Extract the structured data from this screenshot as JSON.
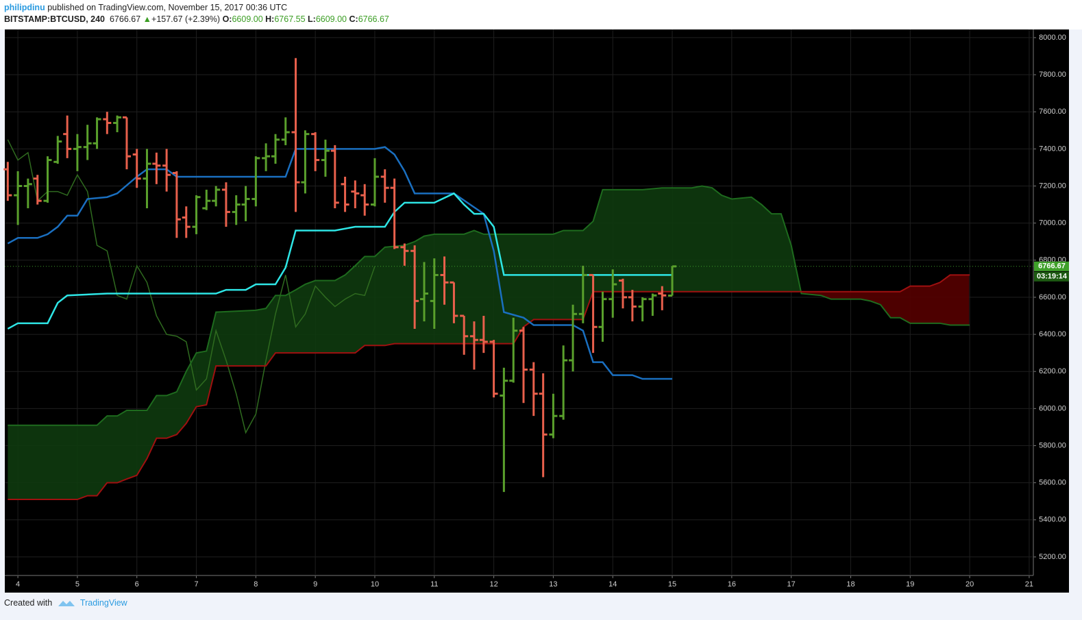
{
  "header": {
    "author": "philipdinu",
    "published": "published on TradingView.com, November 15, 2017 00:36 UTC",
    "symbol": "BITSTAMP:BTCUSD, 240",
    "price": "6766.67",
    "arrow": "▲",
    "change": "+157.67 (+2.39%)",
    "ohlc": [
      {
        "key": "O:",
        "value": "6609.00"
      },
      {
        "key": "H:",
        "value": "6767.55"
      },
      {
        "key": "L:",
        "value": "6609.00"
      },
      {
        "key": "C:",
        "value": "6766.67"
      }
    ]
  },
  "footer": {
    "created": "Created with",
    "brand": "TradingView"
  },
  "chart_data": {
    "type": "ohlc",
    "x": [
      3.83,
      4,
      4.17,
      4.33,
      4.5,
      4.67,
      4.83,
      5,
      5.17,
      5.33,
      5.5,
      5.67,
      5.83,
      6,
      6.17,
      6.33,
      6.5,
      6.67,
      6.83,
      7,
      7.17,
      7.33,
      7.5,
      7.67,
      7.83,
      8,
      8.17,
      8.33,
      8.5,
      8.67,
      8.83,
      9,
      9.17,
      9.33,
      9.5,
      9.67,
      9.83,
      10,
      10.17,
      10.33,
      10.5,
      10.67,
      10.83,
      11,
      11.17,
      11.33,
      11.5,
      11.67,
      11.83,
      12,
      12.17,
      12.33,
      12.5,
      12.67,
      12.83,
      13,
      13.17,
      13.33,
      13.5,
      13.67,
      13.83,
      14,
      14.17,
      14.33,
      14.5,
      14.67,
      14.83,
      15
    ],
    "open": [
      7290,
      7150,
      7200,
      7240,
      7120,
      7330,
      7480,
      7400,
      7410,
      7430,
      7560,
      7540,
      7570,
      7370,
      7240,
      7320,
      7310,
      7270,
      7030,
      6980,
      7080,
      7120,
      7180,
      7060,
      7100,
      7130,
      7350,
      7360,
      7450,
      7490,
      7220,
      7480,
      7340,
      7390,
      7210,
      7170,
      7150,
      7100,
      7250,
      7190,
      6870,
      6850,
      6590,
      6580,
      6720,
      6680,
      6500,
      6390,
      6370,
      6360,
      6070,
      6150,
      6420,
      6210,
      6080,
      5860,
      5960,
      6260,
      6510,
      6720,
      6440,
      6590,
      6690,
      6600,
      6550,
      6590,
      6620,
      6609
    ],
    "high": [
      7330,
      7280,
      7240,
      7260,
      7360,
      7470,
      7580,
      7480,
      7530,
      7570,
      7600,
      7580,
      7570,
      7400,
      7400,
      7380,
      7400,
      7280,
      7090,
      7150,
      7180,
      7200,
      7220,
      7150,
      7200,
      7360,
      7430,
      7480,
      7570,
      7890,
      7500,
      7490,
      7450,
      7420,
      7250,
      7230,
      7210,
      7350,
      7290,
      7240,
      6890,
      6880,
      6790,
      6810,
      6820,
      6680,
      6500,
      6470,
      6500,
      6370,
      6220,
      6490,
      6440,
      6250,
      6190,
      6080,
      6340,
      6560,
      6770,
      6720,
      6630,
      6750,
      6700,
      6640,
      6600,
      6620,
      6660,
      6767.55
    ],
    "low": [
      7120,
      6990,
      7080,
      7100,
      7110,
      7320,
      7350,
      7280,
      7340,
      7400,
      7480,
      7490,
      7290,
      7190,
      7080,
      7210,
      7170,
      6920,
      6920,
      6940,
      7070,
      7090,
      6980,
      6990,
      7010,
      7090,
      7280,
      7320,
      7420,
      7060,
      7160,
      7280,
      7250,
      7080,
      7060,
      7080,
      7040,
      7090,
      7110,
      6860,
      6770,
      6430,
      6470,
      6430,
      6560,
      6460,
      6290,
      6210,
      6300,
      6060,
      5550,
      6140,
      6030,
      5960,
      5630,
      5840,
      5940,
      6200,
      6460,
      6300,
      6360,
      6490,
      6540,
      6470,
      6470,
      6500,
      6530,
      6609
    ],
    "close": [
      7150,
      7200,
      7210,
      7120,
      7340,
      7440,
      7400,
      7410,
      7430,
      7560,
      7540,
      7570,
      7360,
      7240,
      7320,
      7310,
      7260,
      7020,
      6980,
      7140,
      7120,
      7180,
      7060,
      7100,
      7130,
      7350,
      7360,
      7450,
      7490,
      7220,
      7480,
      7340,
      7390,
      7110,
      7100,
      7160,
      7100,
      7250,
      7190,
      6870,
      6850,
      6580,
      6620,
      6720,
      6680,
      6500,
      6390,
      6370,
      6360,
      6080,
      6150,
      6420,
      6210,
      6080,
      5860,
      5960,
      6260,
      6510,
      6720,
      6440,
      6590,
      6670,
      6600,
      6550,
      6590,
      6610,
      6610,
      6766.67
    ],
    "up_color": "#5aa02c",
    "down_color": "#e8604c",
    "lines": [
      {
        "color": "#2f6b1f",
        "width": 1.5,
        "x": [
          3.83,
          4,
          4.17,
          4.33,
          4.5,
          4.67,
          4.83,
          5,
          5.17,
          5.33,
          5.5,
          5.67,
          5.83,
          6,
          6.17,
          6.33,
          6.5,
          6.67,
          6.83,
          7,
          7.17,
          7.33,
          7.5,
          7.67,
          7.83,
          8,
          8.17,
          8.33,
          8.5,
          8.67,
          8.83,
          9,
          9.17,
          9.33,
          9.5,
          9.67,
          9.83,
          10
        ],
        "values": [
          7450,
          7340,
          7380,
          7120,
          7170,
          7170,
          7150,
          7260,
          7170,
          6880,
          6850,
          6610,
          6590,
          6770,
          6680,
          6500,
          6400,
          6390,
          6360,
          6100,
          6160,
          6420,
          6260,
          6080,
          5870,
          5970,
          6260,
          6510,
          6720,
          6440,
          6510,
          6660,
          6600,
          6550,
          6590,
          6620,
          6610,
          6766.67
        ]
      },
      {
        "color": "#1e6b1e",
        "width": 2,
        "fill_color": "#0e3a0e",
        "x": [
          3.83,
          5.33,
          5.5,
          5.67,
          5.83,
          6.17,
          6.33,
          6.5,
          6.67,
          6.83,
          7,
          7.17,
          7.33,
          8,
          8.17,
          8.33,
          8.5,
          8.67,
          8.83,
          9,
          9.33,
          9.5,
          9.67,
          9.83,
          10,
          10.17,
          10.5,
          10.67,
          10.83,
          11,
          11.5,
          11.67,
          11.83,
          13,
          13.17,
          13.5,
          13.67,
          13.83,
          14.5,
          14.83,
          15.33,
          15.5,
          15.67,
          15.83,
          16,
          16.33,
          16.5,
          16.67,
          16.83,
          17,
          17.17,
          17.5,
          17.67,
          18.17,
          18.33,
          18.5,
          18.67,
          18.83,
          19,
          19.5,
          19.67,
          20
        ],
        "values": [
          5910,
          5910,
          5960,
          5960,
          5990,
          5990,
          6070,
          6070,
          6090,
          6200,
          6300,
          6310,
          6520,
          6530,
          6540,
          6610,
          6610,
          6640,
          6670,
          6690,
          6690,
          6720,
          6770,
          6820,
          6820,
          6870,
          6880,
          6900,
          6930,
          6940,
          6940,
          6960,
          6940,
          6940,
          6960,
          6960,
          7010,
          7180,
          7180,
          7190,
          7190,
          7200,
          7190,
          7150,
          7130,
          7140,
          7100,
          7050,
          7050,
          6880,
          6620,
          6610,
          6590,
          6590,
          6580,
          6560,
          6490,
          6490,
          6460,
          6460,
          6450,
          6450
        ]
      },
      {
        "color": "#a01010",
        "width": 2,
        "fill_color": "#550000",
        "x": [
          3.83,
          5,
          5.17,
          5.33,
          5.5,
          5.67,
          5.83,
          6,
          6.17,
          6.33,
          6.5,
          6.67,
          6.83,
          7,
          7.17,
          7.33,
          8.17,
          8.33,
          9.67,
          9.83,
          10.17,
          10.33,
          12.33,
          12.5,
          12.67,
          13.5,
          13.67,
          17,
          18.83,
          19,
          19.33,
          19.5,
          19.67,
          20
        ],
        "values": [
          5510,
          5510,
          5530,
          5530,
          5600,
          5600,
          5620,
          5640,
          5730,
          5840,
          5840,
          5860,
          5920,
          6010,
          6020,
          6230,
          6230,
          6300,
          6300,
          6340,
          6340,
          6350,
          6350,
          6440,
          6480,
          6480,
          6630,
          6630,
          6630,
          6660,
          6660,
          6680,
          6720,
          6720
        ]
      },
      {
        "color": "#1a6fc0",
        "width": 2.5,
        "x": [
          3.83,
          4,
          4.33,
          4.5,
          4.67,
          4.83,
          5,
          5.17,
          5.5,
          5.67,
          6,
          6.17,
          6.5,
          6.67,
          8.5,
          8.67,
          10,
          10.17,
          10.33,
          10.5,
          10.67,
          11.33,
          11.83,
          12,
          12.17,
          12.5,
          12.67,
          13.33,
          13.5,
          13.67,
          13.83,
          14,
          14.33,
          14.5,
          15
        ],
        "values": [
          6890,
          6920,
          6920,
          6940,
          6980,
          7040,
          7040,
          7130,
          7140,
          7160,
          7250,
          7290,
          7290,
          7250,
          7250,
          7400,
          7400,
          7410,
          7370,
          7280,
          7160,
          7160,
          7050,
          6850,
          6520,
          6490,
          6450,
          6450,
          6420,
          6250,
          6250,
          6180,
          6180,
          6160,
          6160
        ]
      },
      {
        "color": "#2ee6e6",
        "width": 2.5,
        "x": [
          3.83,
          4,
          4.5,
          4.67,
          4.83,
          5.5,
          7.33,
          7.5,
          7.83,
          8,
          8.33,
          8.5,
          8.67,
          9.33,
          9.67,
          10.17,
          10.33,
          10.5,
          11,
          11.33,
          11.5,
          11.67,
          11.83,
          12,
          12.17,
          15
        ],
        "values": [
          6430,
          6460,
          6460,
          6570,
          6610,
          6620,
          6620,
          6640,
          6640,
          6670,
          6670,
          6760,
          6960,
          6960,
          6980,
          6980,
          7060,
          7110,
          7110,
          7160,
          7100,
          7050,
          7050,
          6980,
          6720,
          6720
        ]
      }
    ],
    "last_price": 6766.67,
    "last_color": "#3fa02a",
    "countdown": "03:19:14",
    "xlim": [
      3.78,
      21.07
    ],
    "xticks": [
      4,
      5,
      6,
      7,
      8,
      9,
      10,
      11,
      12,
      13,
      14,
      15,
      16,
      17,
      18,
      19,
      20,
      21
    ],
    "ylim": [
      5100,
      8044
    ],
    "yticks": [
      {
        "value": 5200,
        "label": "5200.00"
      },
      {
        "value": 5400,
        "label": "5400.00"
      },
      {
        "value": 5600,
        "label": "5600.00"
      },
      {
        "value": 5800,
        "label": "5800.00"
      },
      {
        "value": 6000,
        "label": "6000.00"
      },
      {
        "value": 6200,
        "label": "6200.00"
      },
      {
        "value": 6400,
        "label": "6400.00"
      },
      {
        "value": 6600,
        "label": "6600.00"
      },
      {
        "value": 6800,
        "label": "6800.00"
      },
      {
        "value": 7000,
        "label": "7000.00"
      },
      {
        "value": 7200,
        "label": "7200.00"
      },
      {
        "value": 7400,
        "label": "7400.00"
      },
      {
        "value": 7600,
        "label": "7600.00"
      },
      {
        "value": 7800,
        "label": "7800.00"
      },
      {
        "value": 8000,
        "label": "8000.00"
      }
    ],
    "grid": true
  }
}
